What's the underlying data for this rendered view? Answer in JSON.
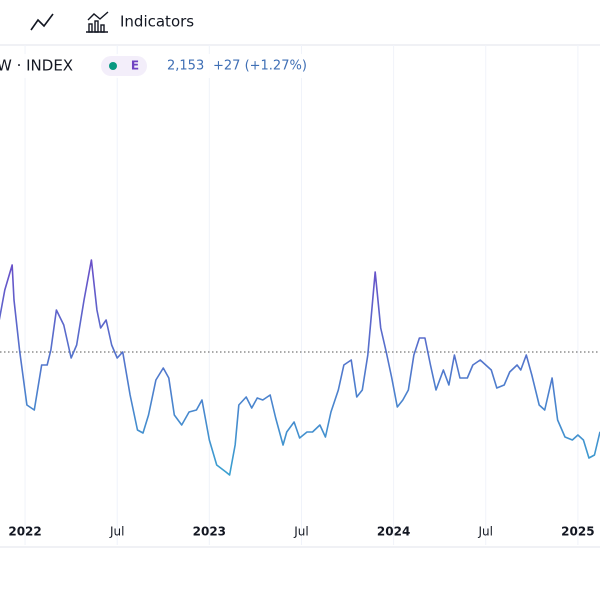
{
  "toolbar": {
    "indicators": "Indicators"
  },
  "legend": {
    "symbol": "W · INDEX",
    "badge": "E",
    "price": "2,153",
    "change": "+27 (+1.27%)"
  },
  "chart_data": {
    "type": "line",
    "x": [
      2021.86,
      2021.89,
      2021.93,
      2021.94,
      2021.97,
      2022.01,
      2022.05,
      2022.09,
      2022.12,
      2022.14,
      2022.17,
      2022.21,
      2022.25,
      2022.28,
      2022.32,
      2022.36,
      2022.39,
      2022.41,
      2022.44,
      2022.47,
      2022.5,
      2022.53,
      2022.57,
      2022.61,
      2022.64,
      2022.67,
      2022.71,
      2022.75,
      2022.78,
      2022.81,
      2022.85,
      2022.89,
      2022.93,
      2022.96,
      2023.0,
      2023.04,
      2023.09,
      2023.11,
      2023.14,
      2023.16,
      2023.2,
      2023.23,
      2023.26,
      2023.29,
      2023.33,
      2023.36,
      2023.4,
      2023.42,
      2023.46,
      2023.49,
      2023.53,
      2023.56,
      2023.6,
      2023.63,
      2023.66,
      2023.7,
      2023.73,
      2023.77,
      2023.8,
      2023.83,
      2023.86,
      2023.9,
      2023.93,
      2023.96,
      2023.99,
      2024.02,
      2024.05,
      2024.08,
      2024.11,
      2024.14,
      2024.17,
      2024.2,
      2024.23,
      2024.27,
      2024.3,
      2024.33,
      2024.36,
      2024.4,
      2024.43,
      2024.47,
      2024.5,
      2024.53,
      2024.56,
      2024.6,
      2024.63,
      2024.67,
      2024.69,
      2024.72,
      2024.75,
      2024.79,
      2024.82,
      2024.86,
      2024.89,
      2024.93,
      2024.97,
      2025.0,
      2025.03,
      2025.06,
      2025.09,
      2025.12
    ],
    "series": [
      {
        "colors": [
          "#6a4fc9",
          "#3aa0d0"
        ],
        "values": [
          2600,
          2720,
          2820,
          2680,
          2480,
          2260,
          2240,
          2420,
          2420,
          2480,
          2640,
          2580,
          2448,
          2500,
          2680,
          2840,
          2640,
          2568,
          2600,
          2500,
          2448,
          2472,
          2300,
          2160,
          2148,
          2220,
          2360,
          2408,
          2368,
          2220,
          2180,
          2232,
          2240,
          2280,
          2120,
          2020,
          1992,
          1980,
          2100,
          2260,
          2292,
          2248,
          2288,
          2280,
          2300,
          2208,
          2100,
          2152,
          2192,
          2128,
          2152,
          2152,
          2180,
          2132,
          2232,
          2320,
          2420,
          2440,
          2292,
          2320,
          2460,
          2792,
          2568,
          2472,
          2368,
          2252,
          2280,
          2320,
          2460,
          2528,
          2528,
          2420,
          2320,
          2400,
          2340,
          2460,
          2368,
          2368,
          2420,
          2440,
          2420,
          2400,
          2328,
          2340,
          2392,
          2420,
          2400,
          2460,
          2380,
          2260,
          2240,
          2368,
          2200,
          2132,
          2120,
          2140,
          2120,
          2048,
          2060,
          2153
        ]
      }
    ],
    "xlim": [
      2021.864,
      2025.12
    ],
    "ylim": [
      1700,
      3700
    ],
    "xticks": [
      {
        "value": 2022,
        "label": "2022"
      },
      {
        "value": 2022.5,
        "label": "Jul"
      },
      {
        "value": 2023,
        "label": "2023"
      },
      {
        "value": 2023.5,
        "label": "Jul"
      },
      {
        "value": 2024,
        "label": "2024"
      },
      {
        "value": 2024.5,
        "label": "Jul"
      },
      {
        "value": 2025,
        "label": "2025"
      }
    ],
    "price_line": 2472,
    "grid": true
  }
}
